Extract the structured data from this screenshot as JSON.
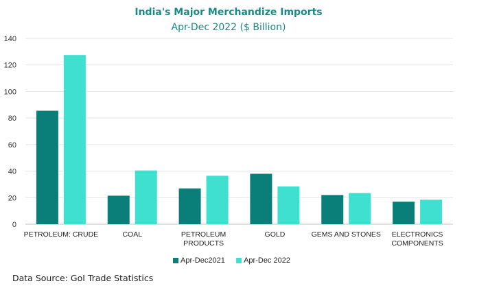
{
  "chart_data": {
    "type": "bar",
    "title": "India's Major Merchandize Imports",
    "subtitle": "Apr-Dec 2022 ($ Billion)",
    "categories": [
      [
        "PETROLEUM: CRUDE"
      ],
      [
        "COAL"
      ],
      [
        "PETROLEUM",
        "PRODUCTS"
      ],
      [
        "GOLD"
      ],
      [
        "GEMS AND STONES"
      ],
      [
        "ELECTRONICS",
        "COMPONENTS"
      ]
    ],
    "series": [
      {
        "name": "Apr-Dec2021",
        "color": "#0a7f7a",
        "values": [
          85.5,
          21.5,
          27,
          38,
          22,
          17
        ]
      },
      {
        "name": "Apr-Dec 2022",
        "color": "#40e0d0",
        "values": [
          127.5,
          40.5,
          36.5,
          28.5,
          23.5,
          18.5
        ]
      }
    ],
    "yticks": [
      0,
      20,
      40,
      60,
      80,
      100,
      120,
      140
    ],
    "ylim": [
      0,
      140
    ],
    "grid": true,
    "legend": "bottom"
  },
  "source": "Data Source: GoI Trade Statistics"
}
